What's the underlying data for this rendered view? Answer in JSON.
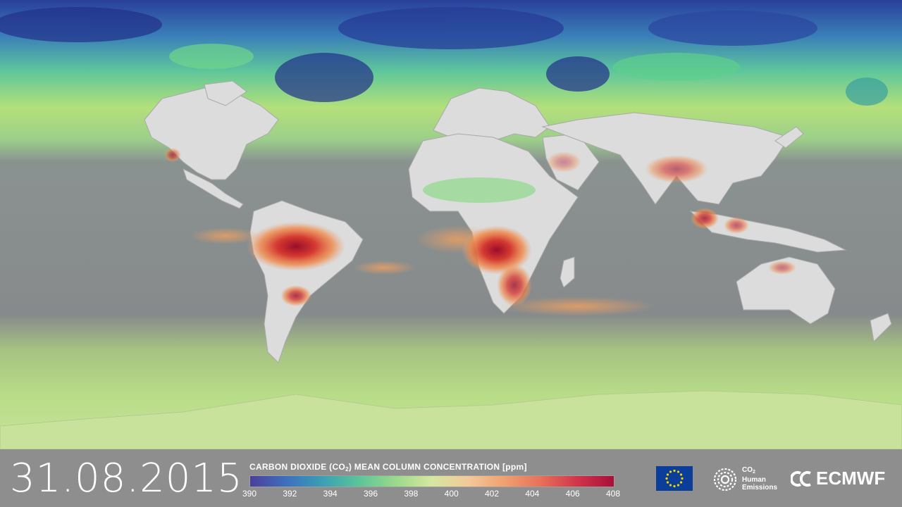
{
  "date": "31.08.2015",
  "colorbar": {
    "title_prefix": "CARBON DIOXIDE (CO",
    "title_sub": "2",
    "title_suffix": ") MEAN COLUMN CONCENTRATION [ppm]",
    "ticks": [
      "390",
      "392",
      "394",
      "396",
      "398",
      "400",
      "402",
      "404",
      "406",
      "408"
    ],
    "min": 390,
    "max": 408
  },
  "logos": {
    "co2_line1": "CO",
    "co2_line1_sub": "2",
    "co2_line2": "Human",
    "co2_line3": "Emissions",
    "ecmwf": "ECMWF"
  },
  "icons": {
    "eu": "eu-flag-icon",
    "co2": "co2-human-emissions-icon",
    "ecmwf": "ecmwf-logo-icon"
  },
  "colors": {
    "ocean_mid": "#878a8e",
    "north_band_dark": "#2a3d9a",
    "north_band_green": "#7fd98a",
    "south_band": "#b9dc8a",
    "land": "#d9d9d9",
    "fire_red": "#b2102f",
    "fire_orange": "#ef8a4a"
  }
}
